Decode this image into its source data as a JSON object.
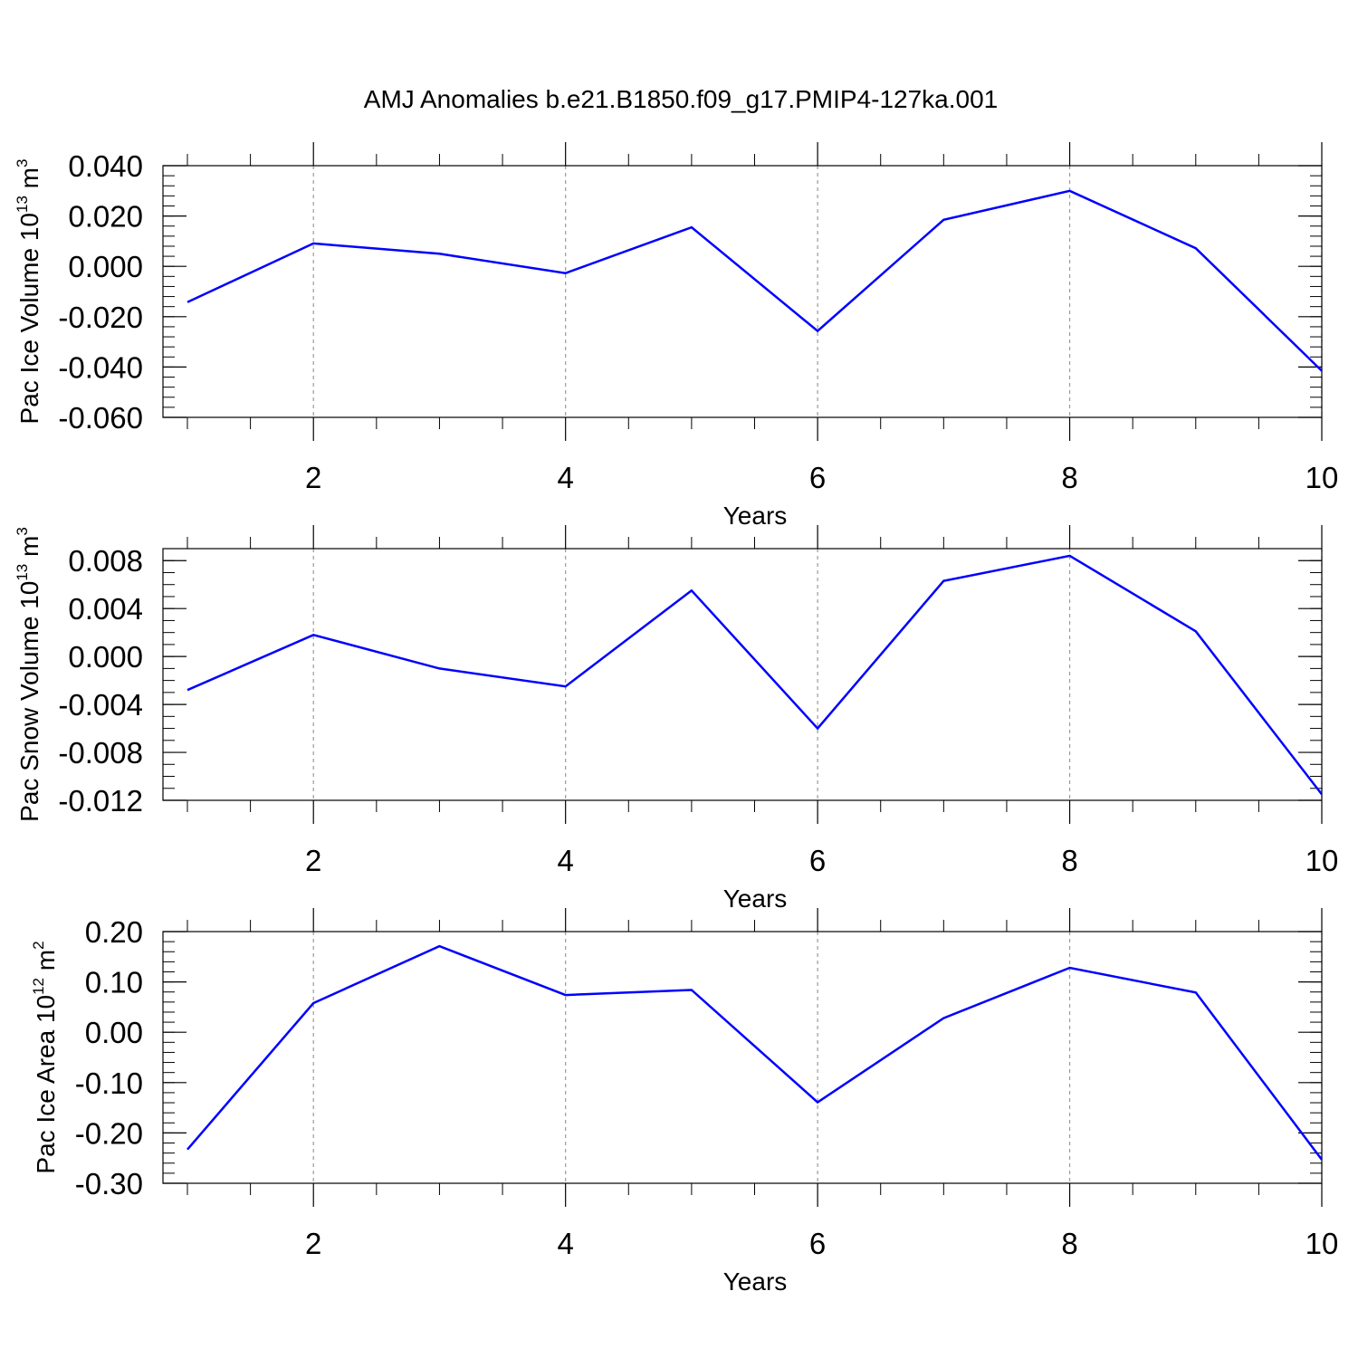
{
  "title": "AMJ Anomalies b.e21.B1850.f09_g17.PMIP4-127ka.001",
  "line_color": "#0000ff",
  "chart_data": [
    {
      "type": "line",
      "ylabel": "Pac Ice Volume 10",
      "ylabel_exp": "13",
      "ylabel_unit": " m",
      "ylabel_unit_exp": "3",
      "xlabel": "Years",
      "xlim": [
        1,
        10
      ],
      "ylim": [
        -0.06,
        0.04
      ],
      "yticks": [
        -0.06,
        -0.04,
        -0.02,
        0.0,
        0.02,
        0.04
      ],
      "ytick_labels": [
        "-0.060",
        "-0.040",
        "-0.020",
        "0.000",
        "0.020",
        "0.040"
      ],
      "yminor_step": 0.004,
      "xticks": [
        2,
        4,
        6,
        8,
        10
      ],
      "xtick_labels": [
        "2",
        "4",
        "6",
        "8",
        "10"
      ],
      "xminor": [
        1,
        3,
        5,
        7,
        9
      ],
      "x": [
        1,
        2,
        3,
        4,
        5,
        6,
        7,
        8,
        9,
        10
      ],
      "y": [
        -0.0142,
        0.0091,
        0.005,
        -0.0027,
        0.0155,
        -0.0257,
        0.0185,
        0.03,
        0.0072,
        -0.0415
      ]
    },
    {
      "type": "line",
      "ylabel": "Pac Snow Volume 10",
      "ylabel_exp": "13",
      "ylabel_unit": " m",
      "ylabel_unit_exp": "3",
      "xlabel": "Years",
      "xlim": [
        1,
        10
      ],
      "ylim": [
        -0.012,
        0.009
      ],
      "yticks": [
        -0.012,
        -0.008,
        -0.004,
        0.0,
        0.004,
        0.008
      ],
      "ytick_labels": [
        "-0.012",
        "-0.008",
        "-0.004",
        "0.000",
        "0.004",
        "0.008"
      ],
      "yminor_step": 0.001,
      "xticks": [
        2,
        4,
        6,
        8,
        10
      ],
      "xtick_labels": [
        "2",
        "4",
        "6",
        "8",
        "10"
      ],
      "xminor": [
        1,
        3,
        5,
        7,
        9
      ],
      "x": [
        1,
        2,
        3,
        4,
        5,
        6,
        7,
        8,
        9,
        10
      ],
      "y": [
        -0.0028,
        0.0018,
        -0.001,
        -0.0025,
        0.0055,
        -0.006,
        0.0063,
        0.0084,
        0.0021,
        -0.0115
      ]
    },
    {
      "type": "line",
      "ylabel": "Pac Ice Area 10",
      "ylabel_exp": "12",
      "ylabel_unit": " m",
      "ylabel_unit_exp": "2",
      "xlabel": "Years",
      "xlim": [
        1,
        10
      ],
      "ylim": [
        -0.3,
        0.2
      ],
      "yticks": [
        -0.3,
        -0.2,
        -0.1,
        0.0,
        0.1,
        0.2
      ],
      "ytick_labels": [
        "-0.30",
        "-0.20",
        "-0.10",
        "0.00",
        "0.10",
        "0.20"
      ],
      "yminor_step": 0.02,
      "xticks": [
        2,
        4,
        6,
        8,
        10
      ],
      "xtick_labels": [
        "2",
        "4",
        "6",
        "8",
        "10"
      ],
      "xminor": [
        1,
        3,
        5,
        7,
        9
      ],
      "x": [
        1,
        2,
        3,
        4,
        5,
        6,
        7,
        8,
        9,
        10
      ],
      "y": [
        -0.233,
        0.058,
        0.171,
        0.074,
        0.084,
        -0.139,
        0.028,
        0.128,
        0.079,
        -0.253
      ]
    }
  ]
}
